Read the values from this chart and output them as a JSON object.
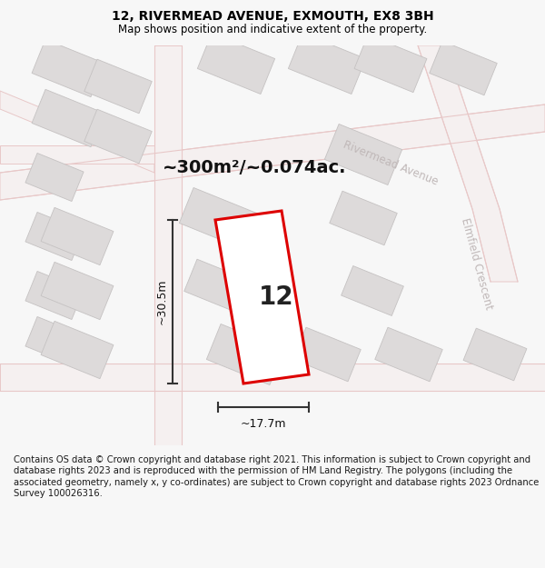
{
  "title": "12, RIVERMEAD AVENUE, EXMOUTH, EX8 3BH",
  "subtitle": "Map shows position and indicative extent of the property.",
  "area_label": "~300m²/~0.074ac.",
  "property_number": "12",
  "width_label": "~17.7m",
  "height_label": "~30.5m",
  "footer": "Contains OS data © Crown copyright and database right 2021. This information is subject to Crown copyright and database rights 2023 and is reproduced with the permission of HM Land Registry. The polygons (including the associated geometry, namely x, y co-ordinates) are subject to Crown copyright and database rights 2023 Ordnance Survey 100026316.",
  "bg_color": "#f7f7f7",
  "map_bg": "#eeecec",
  "road_fill": "#f5f0f0",
  "road_line": "#e8c8c8",
  "building_fill": "#dddada",
  "building_edge": "#c5c2c2",
  "plot_fill": "#ffffff",
  "plot_edge": "#dd0000",
  "road_label_color": "#c0b8b8",
  "dim_color": "#333333",
  "title_fontsize": 10,
  "subtitle_fontsize": 8.5,
  "footer_fontsize": 7.2,
  "area_fontsize": 14,
  "number_fontsize": 20,
  "dim_fontsize": 9
}
